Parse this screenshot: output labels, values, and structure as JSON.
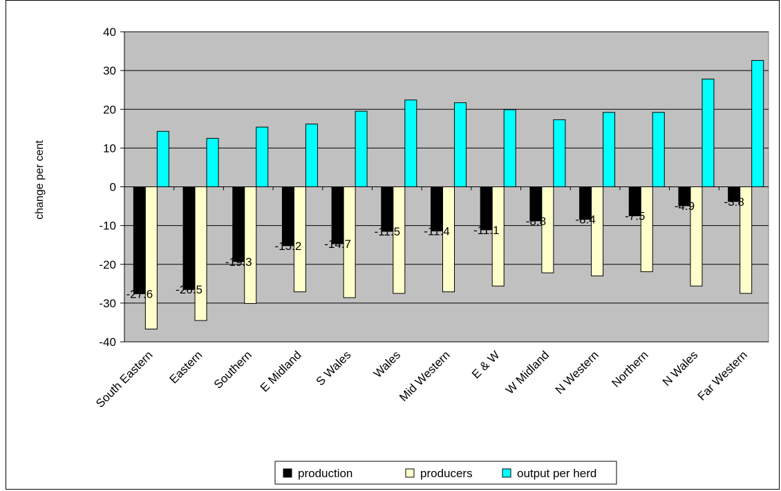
{
  "chart_data": {
    "type": "bar",
    "ylabel": "change per cent",
    "ylim": [
      -40,
      40
    ],
    "yticks": [
      40,
      30,
      20,
      10,
      0,
      -10,
      -20,
      -30,
      -40
    ],
    "grid": true,
    "legend_position": "bottom",
    "categories": [
      "South Eastern",
      "Eastern",
      "Southern",
      "E Midland",
      "S Wales",
      "Wales",
      "Mid Western",
      "E & W",
      "W Midland",
      "N Western",
      "Northern",
      "N Wales",
      "Far Western"
    ],
    "series": [
      {
        "name": "production",
        "color": "#000000",
        "values": [
          -27.6,
          -26.5,
          -19.3,
          -15.2,
          -14.7,
          -11.5,
          -11.4,
          -11.1,
          -8.8,
          -8.4,
          -7.5,
          -4.9,
          -3.8
        ],
        "data_labels": [
          "-27.6",
          "-26.5",
          "-19.3",
          "-15.2",
          "-14.7",
          "-11.5",
          "-11.4",
          "-11.1",
          "-8.8",
          "-8.4",
          "-7.5",
          "-4.9",
          "-3.8"
        ]
      },
      {
        "name": "producers",
        "color": "#FFFFCC",
        "values": [
          -36.7,
          -34.5,
          -30.1,
          -27.1,
          -28.6,
          -27.5,
          -27.1,
          -25.6,
          -22.2,
          -23.0,
          -21.9,
          -25.6,
          -27.5
        ]
      },
      {
        "name": "output per herd",
        "color": "#00FFFF",
        "values": [
          14.3,
          12.5,
          15.4,
          16.2,
          19.5,
          22.4,
          21.7,
          19.9,
          17.3,
          19.2,
          19.2,
          27.8,
          32.6
        ]
      }
    ],
    "plot_background": "#C0C0C0"
  }
}
